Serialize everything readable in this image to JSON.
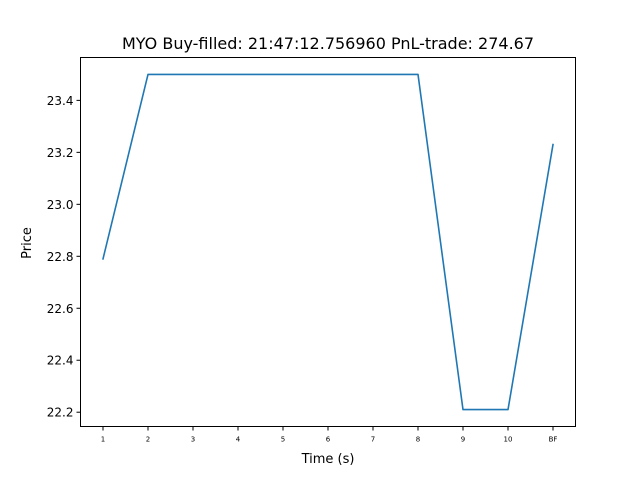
{
  "chart_data": {
    "type": "line",
    "title": "MYO  Buy-filled:  21:47:12.756960  PnL-trade:  274.67",
    "xlabel": "Time (s)",
    "ylabel": "Price",
    "categories": [
      "1",
      "2",
      "3",
      "4",
      "5",
      "6",
      "7",
      "8",
      "9",
      "10",
      "BF"
    ],
    "series": [
      {
        "values": [
          22.79,
          23.5,
          23.5,
          23.5,
          23.5,
          23.5,
          23.5,
          23.5,
          22.21,
          22.21,
          23.23
        ],
        "color": "#1f77b4"
      }
    ],
    "ylim": [
      22.145,
      23.565
    ],
    "yticks": [
      "22.2",
      "22.4",
      "22.6",
      "22.8",
      "23.0",
      "23.2",
      "23.4"
    ],
    "grid": false,
    "legend": "none"
  }
}
